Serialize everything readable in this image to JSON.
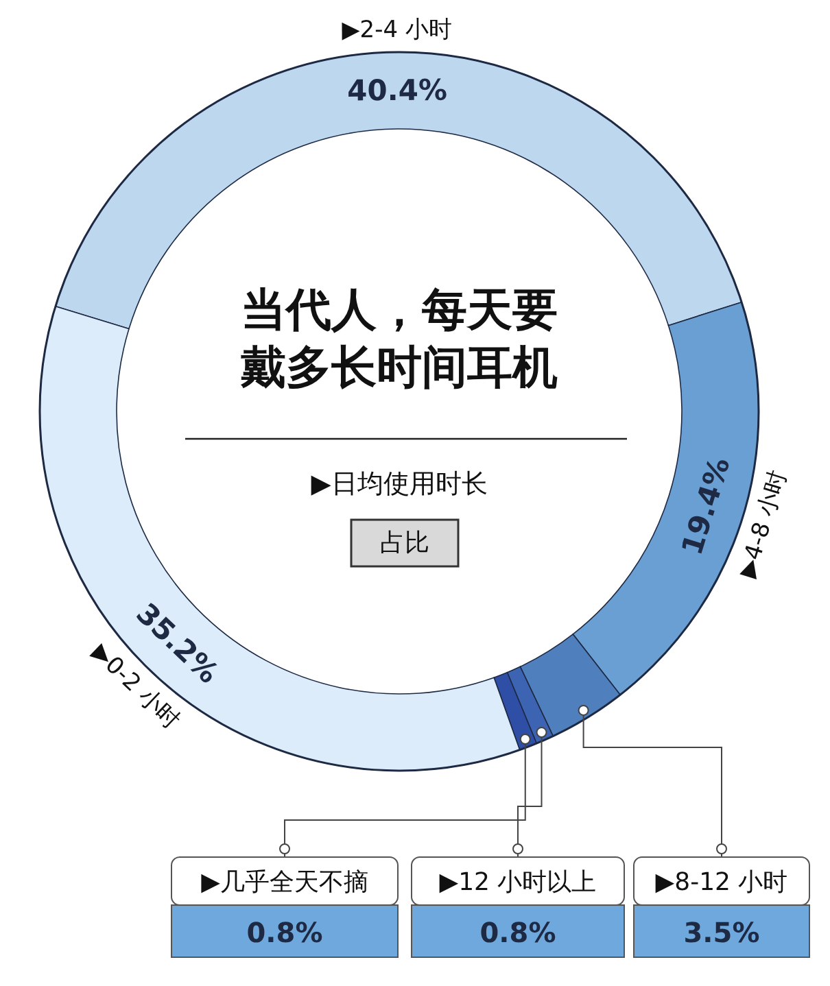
{
  "chart_data": {
    "type": "donut",
    "title": "当代人，每天要戴多长时间耳机",
    "subtitle": "▶日均使用时长",
    "annotations": [
      "占比"
    ],
    "categories": [
      "▶2-4 小时",
      "▶4-8 小时",
      "▶8-12 小时",
      "▶12 小时以上",
      "▶几乎全天不摘",
      "▶0-2 小时"
    ],
    "values": [
      40.4,
      19.4,
      3.5,
      0.8,
      0.8,
      35.2
    ],
    "value_labels": [
      "40.4%",
      "19.4%",
      "3.5%",
      "0.8%",
      "0.8%",
      "35.2%"
    ],
    "colors": [
      "#bcd7ee",
      "#6a9fd4",
      "#4f7fbd",
      "#3d63b3",
      "#2f4fa6",
      "#dcecfa"
    ]
  }
}
